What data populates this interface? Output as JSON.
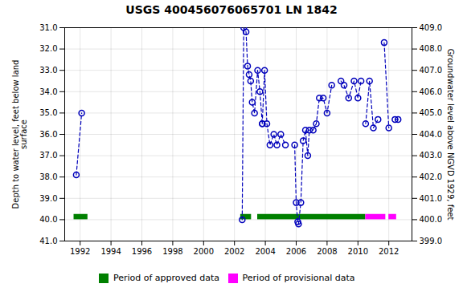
{
  "chart_data": {
    "type": "line",
    "title": "USGS 400456076065701 LN  1842",
    "ylabel": "Depth to water level, feet below land\nsurface",
    "y2label": "Groundwater level above NGVD 1929, feet",
    "xlim": [
      1991.0,
      2013.5
    ],
    "xticks": [
      1992,
      1994,
      1996,
      1998,
      2000,
      2002,
      2004,
      2006,
      2008,
      2010,
      2012
    ],
    "ylim": [
      41.0,
      31.0
    ],
    "yticks": [
      {
        "value": 31.0,
        "label": "31.0"
      },
      {
        "value": 32.0,
        "label": "32.0"
      },
      {
        "value": 33.0,
        "label": "33.0"
      },
      {
        "value": 34.0,
        "label": "34.0"
      },
      {
        "value": 35.0,
        "label": "35.0"
      },
      {
        "value": 36.0,
        "label": "36.0"
      },
      {
        "value": 37.0,
        "label": "37.0"
      },
      {
        "value": 38.0,
        "label": "38.0"
      },
      {
        "value": 39.0,
        "label": "39.0"
      },
      {
        "value": 40.0,
        "label": "40.0"
      },
      {
        "value": 41.0,
        "label": "41.0"
      }
    ],
    "y2lim": [
      399.0,
      409.0
    ],
    "y2ticks": [
      {
        "value": 409.0,
        "label": "409.0"
      },
      {
        "value": 408.0,
        "label": "408.0"
      },
      {
        "value": 407.0,
        "label": "407.0"
      },
      {
        "value": 406.0,
        "label": "406.0"
      },
      {
        "value": 405.0,
        "label": "405.0"
      },
      {
        "value": 404.0,
        "label": "404.0"
      },
      {
        "value": 403.0,
        "label": "403.0"
      },
      {
        "value": 402.0,
        "label": "402.0"
      },
      {
        "value": 401.0,
        "label": "401.0"
      },
      {
        "value": 400.0,
        "label": "400.0"
      },
      {
        "value": 399.0,
        "label": "399.0"
      }
    ],
    "grid": true,
    "legend": "bottom",
    "series": [
      {
        "color": "#0000bb",
        "marker": "circle",
        "line_style": "dashed",
        "x": [
          1991.75,
          1992.1,
          null,
          2002.5,
          2002.6,
          2002.75,
          2002.85,
          2002.95,
          2003.05,
          2003.15,
          2003.3,
          2003.5,
          2003.65,
          2003.8,
          null,
          2003.8,
          2003.95,
          2004.1,
          2004.3,
          2004.55,
          2004.75,
          2005.0,
          2005.3,
          null,
          2005.9,
          2006.0,
          2006.1,
          2006.15,
          2006.3,
          2006.45,
          2006.6,
          2006.75,
          2006.85,
          null,
          2007.1,
          2007.3,
          2007.5,
          2007.75,
          2008.0,
          2008.3,
          null,
          2008.9,
          2009.1,
          2009.4,
          2009.75,
          2010.0,
          2010.2,
          null,
          2010.5,
          2010.75,
          2011.0,
          2011.3,
          null,
          2011.7,
          2012.0,
          null,
          2012.4,
          2012.6
        ],
        "values": [
          37.9,
          35.0,
          null,
          40.0,
          31.0,
          31.2,
          32.8,
          33.2,
          33.5,
          34.5,
          35.0,
          33.0,
          34.0,
          35.5,
          null,
          35.5,
          33.0,
          35.5,
          36.5,
          36.0,
          36.5,
          36.0,
          36.5,
          null,
          36.5,
          39.2,
          40.1,
          40.2,
          39.2,
          36.3,
          35.8,
          37.0,
          35.8,
          null,
          35.8,
          35.5,
          34.3,
          34.3,
          35.0,
          33.7,
          null,
          33.5,
          33.7,
          34.3,
          33.5,
          34.3,
          33.5,
          null,
          35.5,
          33.5,
          35.7,
          35.3,
          null,
          31.7,
          35.7,
          null,
          35.3,
          35.3
        ]
      }
    ],
    "periods": [
      {
        "name": "Period of approved data",
        "color": "#008000",
        "ranges": [
          [
            1991.6,
            1992.5
          ],
          [
            2002.4,
            2003.1
          ],
          [
            2003.5,
            2010.5
          ]
        ]
      },
      {
        "name": "Period of provisional data",
        "color": "#ff00ff",
        "ranges": [
          [
            2010.5,
            2011.8
          ],
          [
            2012.0,
            2012.5
          ]
        ]
      }
    ],
    "period_bar_bottom": 40.0,
    "period_bar_top": 39.75
  }
}
